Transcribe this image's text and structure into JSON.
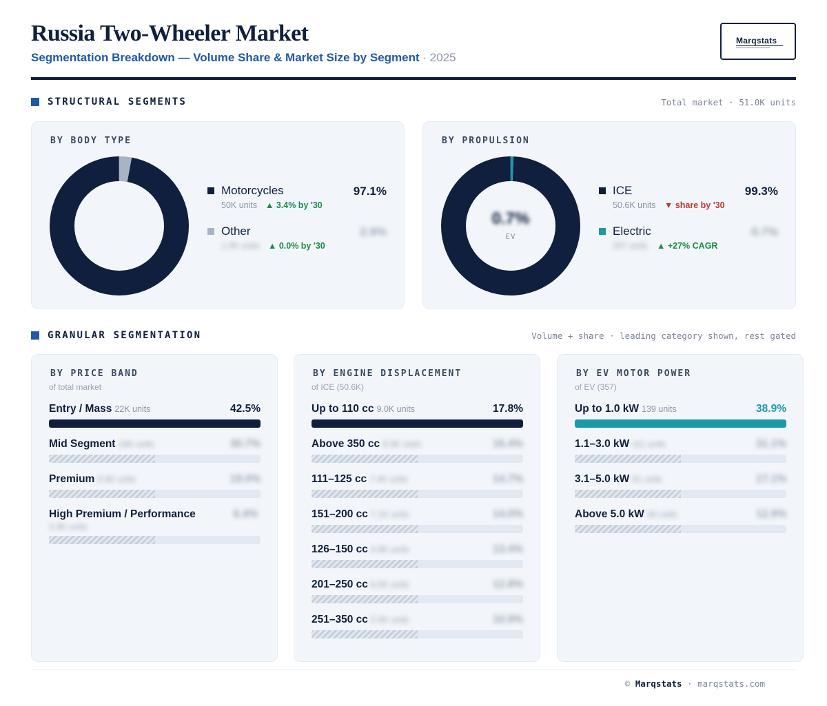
{
  "header": {
    "title": "Russia Two-Wheeler Market",
    "subtitle": "Segmentation Breakdown — Volume Share & Market Size by Segment",
    "separator": "·",
    "year": "2025",
    "logo": "Marqstats"
  },
  "structural": {
    "title": "STRUCTURAL SEGMENTS",
    "note": "Total market · 51.0K units"
  },
  "granular": {
    "title": "GRANULAR SEGMENTATION",
    "note": "Volume + share · leading category shown, rest gated"
  },
  "colors": {
    "navy": "#0f1f3d",
    "accent_blue": "#1f5aa6",
    "teal": "#1a9aa6",
    "other_gray": "#a8b4c6",
    "up_green": "#1e8a4a",
    "down_red": "#c0392b"
  },
  "chart_data": [
    {
      "type": "pie",
      "title": "BY BODY TYPE",
      "series": [
        {
          "name": "Motorcycles",
          "value": 97.1,
          "units": "50K units",
          "trend": "▲ 3.4% by '30",
          "pct_label": "97.1%",
          "color": "#0f1f3d"
        },
        {
          "name": "Other",
          "value": 2.9,
          "units": "1.5K units",
          "trend": "▲ 0.0% by '30",
          "pct_label": "2.9%",
          "color": "#a8b4c6"
        }
      ]
    },
    {
      "type": "pie",
      "title": "BY PROPULSION",
      "center_value": "0.7%",
      "center_label": "EV",
      "series": [
        {
          "name": "ICE",
          "value": 99.3,
          "units": "50.6K units",
          "trend": "▼ share by '30",
          "pct_label": "99.3%",
          "color": "#0f1f3d"
        },
        {
          "name": "Electric",
          "value": 0.7,
          "units": "357 units",
          "trend": "▲ +27% CAGR",
          "pct_label": "0.7%",
          "color": "#1a9aa6"
        }
      ]
    },
    {
      "type": "bar",
      "title": "BY PRICE BAND",
      "subtitle": "of total market",
      "categories": [
        "Entry / Mass",
        "Mid Segment",
        "Premium",
        "High Premium / Performance"
      ],
      "units": [
        "22K units",
        "16K units",
        "9.9K units",
        "3.3K units"
      ],
      "values": [
        42.5,
        null,
        null,
        null
      ],
      "pct_labels": [
        "42.5%",
        "30.7%",
        "19.0%",
        "6.4%"
      ],
      "color": "#0f1f3d"
    },
    {
      "type": "bar",
      "title": "BY ENGINE DISPLACEMENT",
      "subtitle": "of ICE (50.6K)",
      "categories": [
        "Up to 110 cc",
        "Above 350 cc",
        "111–125 cc",
        "151–200 cc",
        "126–150 cc",
        "201–250 cc",
        "251–350 cc"
      ],
      "units": [
        "9.0K units",
        "8.3K units",
        "7.4K units",
        "7.1K units",
        "6.8K units",
        "6.5K units",
        "5.5K units"
      ],
      "values": [
        17.8,
        null,
        null,
        null,
        null,
        null,
        null
      ],
      "pct_labels": [
        "17.8%",
        "16.4%",
        "14.7%",
        "14.0%",
        "13.4%",
        "12.8%",
        "10.9%"
      ],
      "color": "#0f1f3d"
    },
    {
      "type": "bar",
      "title": "BY EV MOTOR POWER",
      "subtitle": "of EV (357)",
      "categories": [
        "Up to 1.0 kW",
        "1.1–3.0 kW",
        "3.1–5.0 kW",
        "Above 5.0 kW"
      ],
      "units": [
        "139 units",
        "111 units",
        "61 units",
        "46 units"
      ],
      "values": [
        38.9,
        null,
        null,
        null
      ],
      "pct_labels": [
        "38.9%",
        "31.1%",
        "17.1%",
        "12.9%"
      ],
      "color": "#1a9aa6"
    }
  ],
  "footer": {
    "copyright": "©",
    "brand": "Marqstats",
    "separator": "·",
    "site": "marqstats.com"
  }
}
